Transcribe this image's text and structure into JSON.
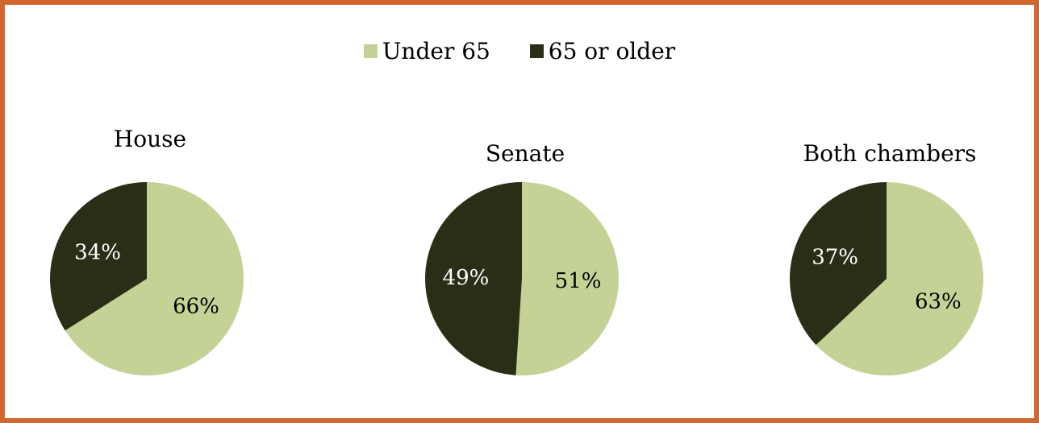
{
  "chart_data": [
    {
      "type": "pie",
      "title": "House",
      "slices": [
        {
          "name": "Under 65",
          "value": 66,
          "label": "66%"
        },
        {
          "name": "65 or older",
          "value": 34,
          "label": "34%"
        }
      ]
    },
    {
      "type": "pie",
      "title": "Senate",
      "slices": [
        {
          "name": "Under 65",
          "value": 51,
          "label": "51%"
        },
        {
          "name": "65 or older",
          "value": 49,
          "label": "49%"
        }
      ]
    },
    {
      "type": "pie",
      "title": "Both chambers",
      "slices": [
        {
          "name": "Under 65",
          "value": 63,
          "label": "63%"
        },
        {
          "name": "65 or older",
          "value": 37,
          "label": "37%"
        }
      ]
    }
  ],
  "legend": {
    "placement": "top-center",
    "items": [
      {
        "label": "Under 65",
        "color": "#c4d296"
      },
      {
        "label": "65 or older",
        "color": "#2b2e17"
      }
    ]
  },
  "colors": {
    "under_65": "#c4d296",
    "over_65": "#2b2e17",
    "border": "#d0672f"
  }
}
